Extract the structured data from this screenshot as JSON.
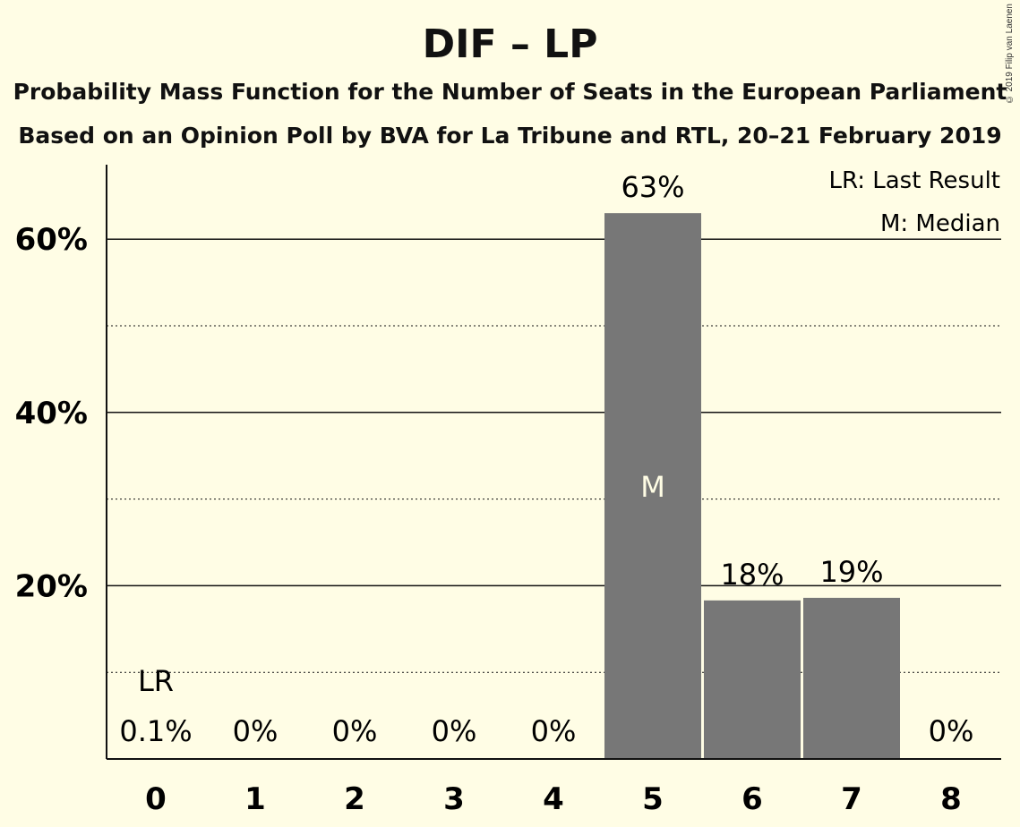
{
  "chart_data": {
    "type": "bar",
    "title": "DIF – LP",
    "subtitle": "Probability Mass Function for the Number of Seats in the European Parliament",
    "subtitle2": "Based on an Opinion Poll by BVA for La Tribune and RTL, 20–21 February 2019",
    "copyright": "© 2019 Filip van Laenen",
    "categories": [
      "0",
      "1",
      "2",
      "3",
      "4",
      "5",
      "6",
      "7",
      "8"
    ],
    "values": [
      0.1,
      0,
      0,
      0,
      0,
      63,
      18.3,
      18.6,
      0
    ],
    "value_labels": [
      "0.1%",
      "0%",
      "0%",
      "0%",
      "0%",
      "63%",
      "18%",
      "19%",
      "0%"
    ],
    "ylim": [
      0,
      68
    ],
    "yticks": [
      20,
      40,
      60
    ],
    "ytick_labels": [
      "20%",
      "40%",
      "60%"
    ],
    "minor_gridlines": [
      10,
      30,
      50
    ],
    "last_result_index": 0,
    "last_result_label": "LR",
    "median_index": 5,
    "median_label": "M",
    "legend": [
      "LR: Last Result",
      "M: Median"
    ],
    "legend_position": "top-right",
    "bar_color": "#777777",
    "background_color": "#FFFDE5"
  }
}
